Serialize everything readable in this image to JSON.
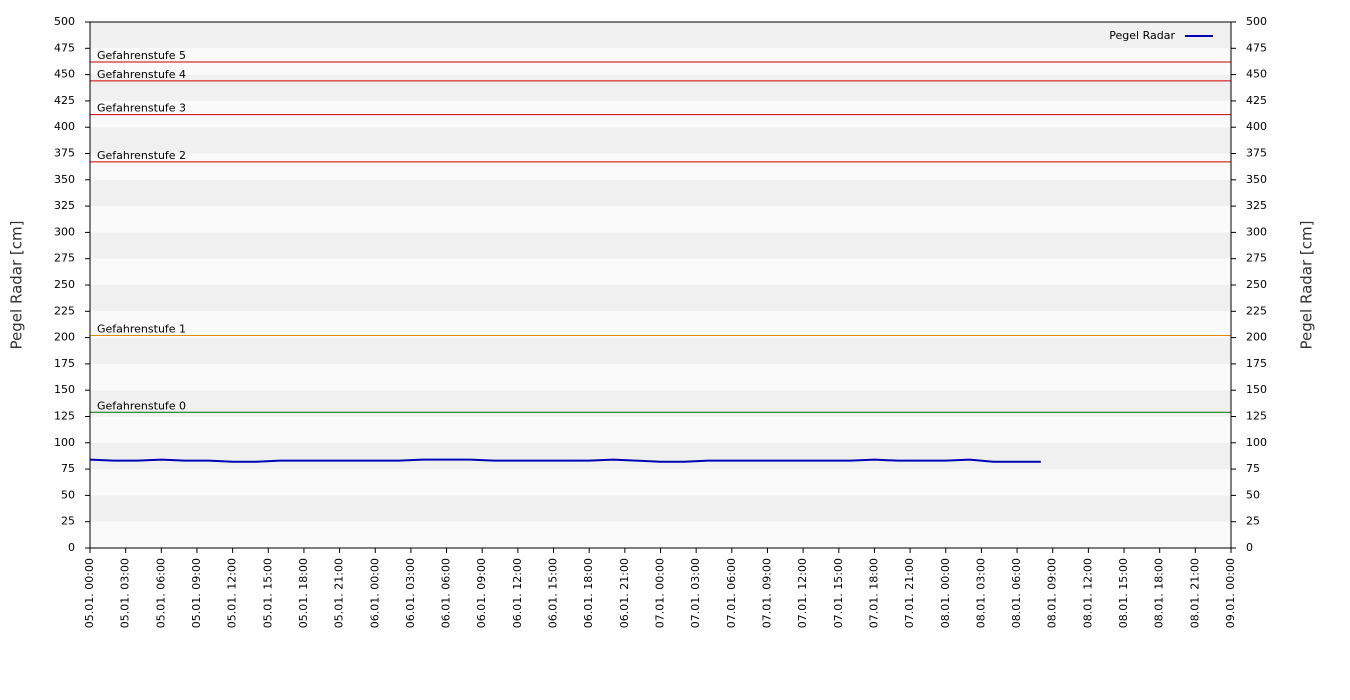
{
  "chart_data": {
    "type": "line",
    "ylabel": "Pegel Radar [cm]",
    "y2label": "Pegel Radar [cm]",
    "x": [
      "05.01. 00:00",
      "05.01. 02:00",
      "05.01. 04:00",
      "05.01. 06:00",
      "05.01. 08:00",
      "05.01. 10:00",
      "05.01. 12:00",
      "05.01. 14:00",
      "05.01. 16:00",
      "05.01. 18:00",
      "05.01. 20:00",
      "05.01. 22:00",
      "06.01. 00:00",
      "06.01. 02:00",
      "06.01. 04:00",
      "06.01. 06:00",
      "06.01. 08:00",
      "06.01. 10:00",
      "06.01. 12:00",
      "06.01. 14:00",
      "06.01. 16:00",
      "06.01. 18:00",
      "06.01. 20:00",
      "06.01. 22:00",
      "07.01. 00:00",
      "07.01. 02:00",
      "07.01. 04:00",
      "07.01. 06:00",
      "07.01. 08:00",
      "07.01. 10:00",
      "07.01. 12:00",
      "07.01. 14:00",
      "07.01. 16:00",
      "07.01. 18:00",
      "07.01. 20:00",
      "07.01. 22:00",
      "08.01. 00:00",
      "08.01. 02:00",
      "08.01. 04:00",
      "08.01. 06:00",
      "08.01. 08:00"
    ],
    "series": [
      {
        "name": "Pegel Radar",
        "color": "#0000b4",
        "values": [
          84,
          83,
          83,
          84,
          83,
          83,
          82,
          82,
          83,
          83,
          83,
          83,
          83,
          83,
          84,
          84,
          84,
          83,
          83,
          83,
          83,
          83,
          84,
          83,
          82,
          82,
          83,
          83,
          83,
          83,
          83,
          83,
          83,
          84,
          83,
          83,
          83,
          84,
          82,
          82,
          82
        ]
      }
    ],
    "thresholds": [
      {
        "label": "Gefahrenstufe 5",
        "value": 462,
        "color": "#cc0000"
      },
      {
        "label": "Gefahrenstufe 4",
        "value": 444,
        "color": "#cc0000"
      },
      {
        "label": "Gefahrenstufe 3",
        "value": 412,
        "color": "#cc0000"
      },
      {
        "label": "Gefahrenstufe 2",
        "value": 367,
        "color": "#cc0000"
      },
      {
        "label": "Gefahrenstufe 1",
        "value": 202,
        "color": "#e08a00"
      },
      {
        "label": "Gefahrenstufe 0",
        "value": 129,
        "color": "#007000"
      }
    ],
    "xlim": [
      "05.01. 00:00",
      "09.01. 00:00"
    ],
    "xticks": [
      "05.01. 00:00",
      "05.01. 03:00",
      "05.01. 06:00",
      "05.01. 09:00",
      "05.01. 12:00",
      "05.01. 15:00",
      "05.01. 18:00",
      "05.01. 21:00",
      "06.01. 00:00",
      "06.01. 03:00",
      "06.01. 06:00",
      "06.01. 09:00",
      "06.01. 12:00",
      "06.01. 15:00",
      "06.01. 18:00",
      "06.01. 21:00",
      "07.01. 00:00",
      "07.01. 03:00",
      "07.01. 06:00",
      "07.01. 09:00",
      "07.01. 12:00",
      "07.01. 15:00",
      "07.01. 18:00",
      "07.01. 21:00",
      "08.01. 00:00",
      "08.01. 03:00",
      "08.01. 06:00",
      "08.01. 09:00",
      "08.01. 12:00",
      "08.01. 15:00",
      "08.01. 18:00",
      "08.01. 21:00",
      "09.01. 00:00"
    ],
    "ylim": [
      0,
      500
    ],
    "yticks": [
      0,
      25,
      50,
      75,
      100,
      125,
      150,
      175,
      200,
      225,
      250,
      275,
      300,
      325,
      350,
      375,
      400,
      425,
      450,
      475,
      500
    ],
    "y2lim": [
      0,
      500
    ],
    "y2ticks": [
      0,
      25,
      50,
      75,
      100,
      125,
      150,
      175,
      200,
      225,
      250,
      275,
      300,
      325,
      350,
      375,
      400,
      425,
      450,
      475,
      500
    ],
    "grid": "bands",
    "legend": "upper right"
  }
}
